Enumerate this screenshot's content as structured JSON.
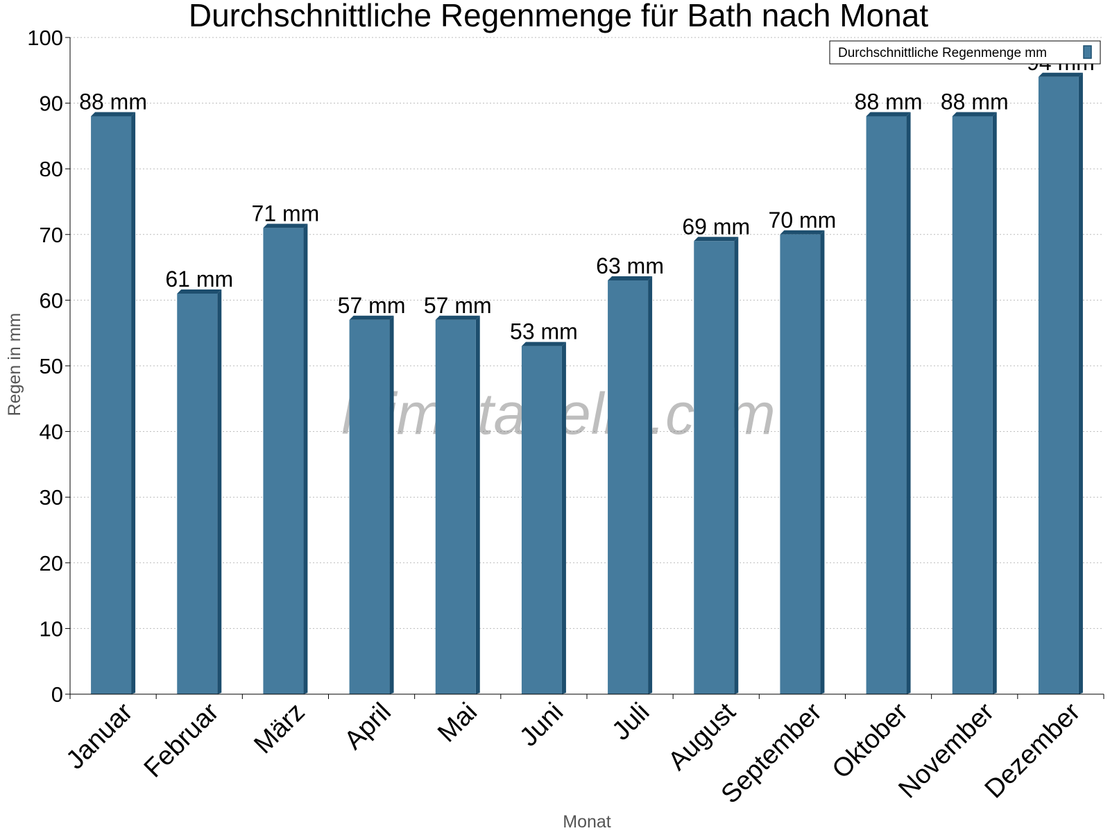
{
  "chart_data": {
    "type": "bar",
    "title": "Durchschnittliche Regenmenge für Bath nach Monat",
    "xlabel": "Monat",
    "ylabel": "Regen in mm",
    "ylim": [
      0,
      100
    ],
    "yticks": [
      0,
      10,
      20,
      30,
      40,
      50,
      60,
      70,
      80,
      90,
      100
    ],
    "grid": true,
    "legend_position": "top-right",
    "categories": [
      "Januar",
      "Februar",
      "März",
      "April",
      "Mai",
      "Juni",
      "Juli",
      "August",
      "September",
      "Oktober",
      "November",
      "Dezember"
    ],
    "series": [
      {
        "name": "Durchschnittliche Regenmenge mm",
        "values": [
          88,
          61,
          71,
          57,
          57,
          53,
          63,
          69,
          70,
          88,
          88,
          94
        ],
        "labels": [
          "88 mm",
          "61 mm",
          "71 mm",
          "57 mm",
          "57 mm",
          "53 mm",
          "63 mm",
          "69 mm",
          "70 mm",
          "88 mm",
          "88 mm",
          "94 mm"
        ],
        "color": "#457b9d",
        "side_color": "#1d4e6e"
      }
    ],
    "watermark": "klimatabelle.com"
  }
}
